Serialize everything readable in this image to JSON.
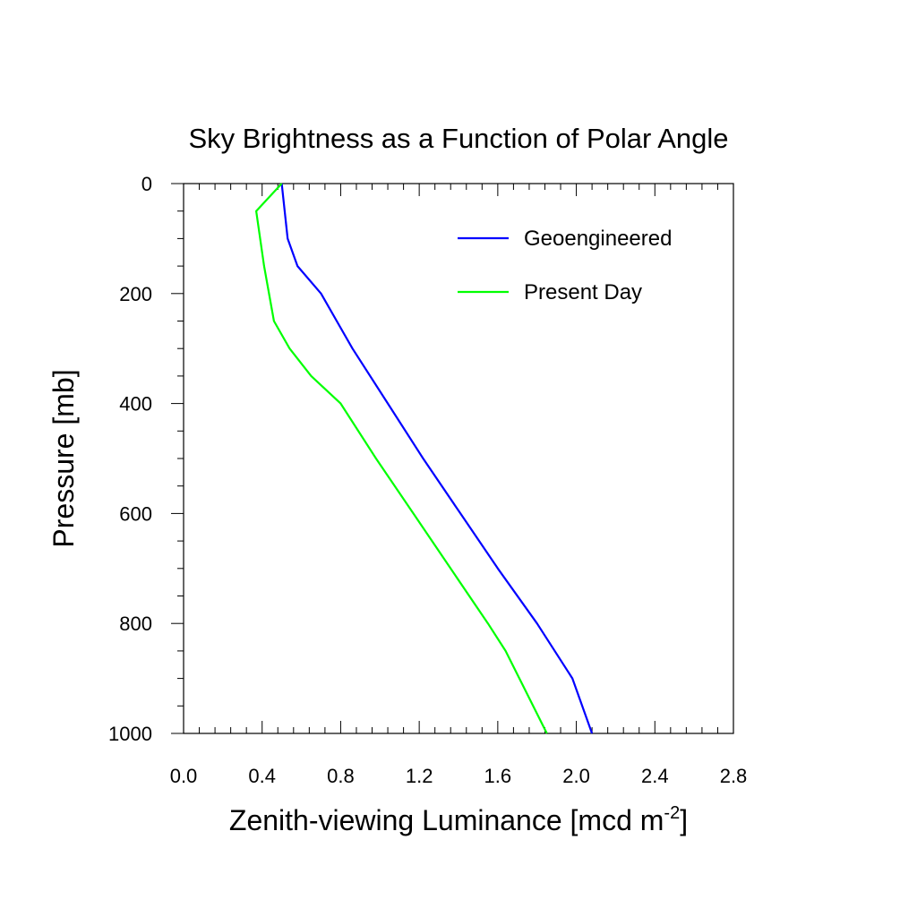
{
  "chart_data": {
    "type": "line",
    "title": "Sky Brightness as a Function of Polar Angle",
    "xlabel": "Zenith-viewing Luminance [mcd m",
    "xlabel_sup": "-2",
    "xlabel_end": "]",
    "ylabel": "Pressure [mb]",
    "xlim": [
      0.0,
      2.8
    ],
    "ylim": [
      0,
      1000
    ],
    "y_inverted": true,
    "x_ticks": [
      "0.0",
      "0.4",
      "0.8",
      "1.2",
      "1.6",
      "2.0",
      "2.4",
      "2.8"
    ],
    "y_ticks": [
      "0",
      "200",
      "400",
      "600",
      "800",
      "1000"
    ],
    "grid": false,
    "legend_position": "top-right",
    "series": [
      {
        "name": "Geoengineered",
        "color": "#0000ff",
        "points": [
          [
            0.5,
            0
          ],
          [
            0.53,
            100
          ],
          [
            0.58,
            150
          ],
          [
            0.7,
            200
          ],
          [
            0.86,
            300
          ],
          [
            1.04,
            400
          ],
          [
            1.22,
            500
          ],
          [
            1.41,
            600
          ],
          [
            1.6,
            700
          ],
          [
            1.8,
            800
          ],
          [
            1.98,
            900
          ],
          [
            2.08,
            1000
          ]
        ]
      },
      {
        "name": "Present Day",
        "color": "#00ff00",
        "points": [
          [
            0.5,
            0
          ],
          [
            0.37,
            50
          ],
          [
            0.41,
            150
          ],
          [
            0.46,
            250
          ],
          [
            0.54,
            300
          ],
          [
            0.65,
            350
          ],
          [
            0.8,
            400
          ],
          [
            0.98,
            500
          ],
          [
            1.17,
            600
          ],
          [
            1.36,
            700
          ],
          [
            1.55,
            800
          ],
          [
            1.64,
            850
          ],
          [
            1.71,
            900
          ],
          [
            1.85,
            1000
          ]
        ]
      }
    ]
  }
}
